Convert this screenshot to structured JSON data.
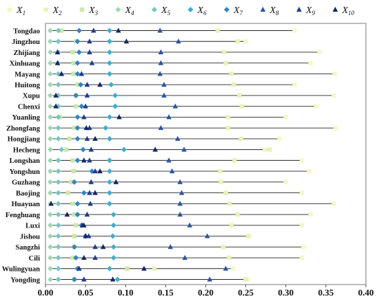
{
  "chart_data": {
    "type": "scatter",
    "orientation": "horizontal",
    "xlim": [
      0,
      0.4
    ],
    "xticks": [
      "0.00",
      "0.05",
      "0.10",
      "0.15",
      "0.20",
      "0.25",
      "0.30",
      "0.35",
      "0.40"
    ],
    "legend_position": "top",
    "categories": [
      "Tongdao",
      "Jingzhou",
      "Zhijiang",
      "Xinhuang",
      "Mayang",
      "Huitong",
      "Xupu",
      "Chenxi",
      "Yuanling",
      "Zhongfang",
      "Hongjiang",
      "Hecheng",
      "Longshan",
      "Yongshun",
      "Guzhang",
      "Baojing",
      "Huayuan",
      "Fenghuang",
      "Luxi",
      "Jishou",
      "Sangzhi",
      "Cili",
      "Wulingyuan",
      "Yongding"
    ],
    "series": [
      {
        "name": "X1",
        "color": "#f4f8c4",
        "marker": "square",
        "values": [
          0.311,
          0.25,
          0.342,
          0.331,
          0.361,
          0.311,
          0.36,
          0.338,
          0.3,
          0.362,
          0.292,
          0.274,
          0.32,
          0.329,
          0.3,
          0.32,
          0.36,
          0.331,
          0.32,
          0.254,
          0.322,
          0.32,
          0.234,
          0.252
        ]
      },
      {
        "name": "X2",
        "color": "#e7f3b4",
        "marker": "square",
        "values": [
          0.215,
          0.24,
          0.223,
          0.225,
          0.232,
          0.235,
          0.242,
          0.245,
          0.228,
          0.228,
          0.244,
          0.28,
          0.236,
          0.218,
          0.219,
          0.225,
          0.23,
          0.24,
          0.232,
          0.253,
          0.222,
          0.229,
          0.136,
          0.25
        ]
      },
      {
        "name": "X3",
        "color": "#cde9a6",
        "marker": "square",
        "values": [
          0.02,
          0.038,
          0.034,
          0.035,
          0.035,
          0.04,
          0.038,
          0.038,
          0.018,
          0.036,
          0.03,
          0.026,
          0.034,
          0.035,
          0.032,
          0.028,
          0.034,
          0.036,
          0.038,
          0.036,
          0.036,
          0.034,
          0.102,
          0.036
        ]
      },
      {
        "name": "X4",
        "color": "#9fd8b4",
        "marker": "diamond",
        "values": [
          0.006,
          0.006,
          0.006,
          0.006,
          0.006,
          0.006,
          0.006,
          0.006,
          0.006,
          0.006,
          0.006,
          0.006,
          0.006,
          0.006,
          0.006,
          0.006,
          0.006,
          0.006,
          0.006,
          0.006,
          0.006,
          0.006,
          0.006,
          0.006
        ]
      },
      {
        "name": "X5",
        "color": "#72c8c4",
        "marker": "diamond",
        "values": [
          0.016,
          0.016,
          0.016,
          0.016,
          0.016,
          0.016,
          0.016,
          0.016,
          0.016,
          0.016,
          0.016,
          0.02,
          0.016,
          0.016,
          0.016,
          0.016,
          0.016,
          0.016,
          0.016,
          0.016,
          0.016,
          0.016,
          0.016,
          0.016
        ]
      },
      {
        "name": "X6",
        "color": "#3ab0d0",
        "marker": "diamond",
        "values": [
          0.08,
          0.08,
          0.08,
          0.08,
          0.08,
          0.082,
          0.087,
          0.087,
          0.08,
          0.075,
          0.08,
          0.098,
          0.08,
          0.08,
          0.08,
          0.08,
          0.08,
          0.085,
          0.085,
          0.084,
          0.085,
          0.085,
          0.08,
          0.09
        ]
      },
      {
        "name": "X7",
        "color": "#2f86c8",
        "marker": "diamond",
        "values": [
          0.042,
          0.04,
          0.042,
          0.04,
          0.04,
          0.044,
          0.038,
          0.045,
          0.04,
          0.04,
          0.04,
          0.047,
          0.04,
          0.058,
          0.036,
          0.048,
          0.04,
          0.04,
          0.045,
          0.05,
          0.036,
          0.038,
          0.04,
          0.036
        ]
      },
      {
        "name": "X8",
        "color": "#2a55a8",
        "marker": "triangle",
        "values": [
          0.143,
          0.166,
          0.144,
          0.144,
          0.143,
          0.148,
          0.148,
          0.162,
          0.154,
          0.144,
          0.165,
          0.173,
          0.154,
          0.158,
          0.168,
          0.17,
          0.168,
          0.168,
          0.18,
          0.202,
          0.156,
          0.174,
          0.225,
          0.205
        ]
      },
      {
        "name": "X9",
        "color": "#1f3c8e",
        "marker": "triangle",
        "values": [
          0.06,
          0.055,
          0.055,
          0.058,
          0.045,
          0.052,
          0.052,
          0.05,
          0.048,
          0.055,
          0.052,
          0.057,
          0.055,
          0.062,
          0.057,
          0.055,
          0.056,
          0.052,
          0.046,
          0.054,
          0.062,
          0.062,
          0.042,
          0.048
        ]
      },
      {
        "name": "X10",
        "color": "#152666",
        "marker": "triangle",
        "values": [
          0.091,
          0.101,
          0.015,
          0.015,
          0.02,
          0.068,
          0.013,
          0.013,
          0.092,
          0.051,
          0.062,
          0.137,
          0.048,
          0.068,
          0.088,
          0.062,
          0.007,
          0.027,
          0.048,
          0.05,
          0.072,
          0.048,
          0.123,
          0.084
        ]
      }
    ]
  }
}
